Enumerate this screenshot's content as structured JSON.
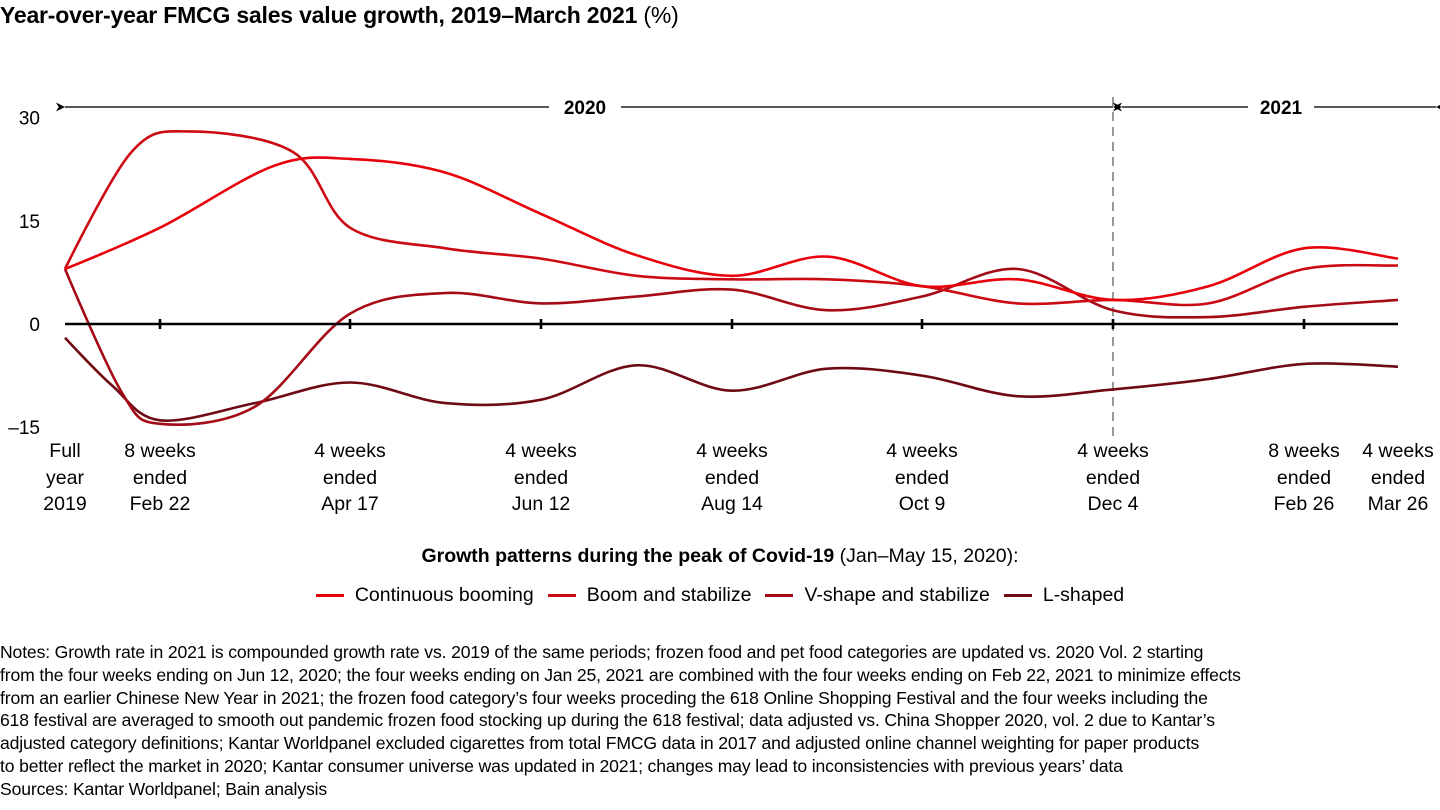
{
  "title": {
    "bold": "Year-over-year FMCG sales value growth, 2019–March 2021",
    "unit": "(%)"
  },
  "chart_data": {
    "type": "line",
    "title": "Year-over-year FMCG sales value growth, 2019–March 2021 (%)",
    "xlabel": "",
    "ylabel": "%",
    "ylim": [
      -15,
      30
    ],
    "yticks": [
      30,
      15,
      0,
      -15
    ],
    "ytick_labels": [
      "30",
      "15",
      "0",
      "–15"
    ],
    "categories": [
      [
        "Full",
        "year",
        "2019"
      ],
      [
        "8 weeks",
        "ended",
        "Feb 22"
      ],
      [
        "4 weeks",
        "ended",
        "Apr 17"
      ],
      [
        "4 weeks",
        "ended",
        "Jun 12"
      ],
      [
        "4 weeks",
        "ended",
        "Aug 14"
      ],
      [
        "4 weeks",
        "ended",
        "Oct 9"
      ],
      [
        "4 weeks",
        "ended",
        "Dec 4"
      ],
      [
        "8 weeks",
        "ended",
        "Feb 26"
      ],
      [
        "4 weeks",
        "ended",
        "Mar 26"
      ]
    ],
    "periods": [
      {
        "label": "2020",
        "from": 0,
        "to": 6
      },
      {
        "label": "2021",
        "from": 6,
        "to": 8
      }
    ],
    "divider_at": 6,
    "grid": false,
    "legend_title_bold": "Growth patterns during the peak of Covid-19",
    "legend_title_rest": " (Jan–May 15, 2020):",
    "legend_position": "bottom-center",
    "series": [
      {
        "name": "Continuous booming",
        "color": "#E8000B",
        "values": [
          8,
          14,
          24,
          16,
          7,
          5.5,
          3.5,
          11,
          9.5
        ],
        "curve_points": [
          [
            0,
            8
          ],
          [
            1,
            14
          ],
          [
            1.6,
            23
          ],
          [
            2,
            24
          ],
          [
            2.5,
            22
          ],
          [
            3,
            16
          ],
          [
            3.5,
            10
          ],
          [
            4,
            7
          ],
          [
            4.5,
            9.8
          ],
          [
            5,
            5.5
          ],
          [
            5.5,
            6.5
          ],
          [
            6,
            3.5
          ],
          [
            6.5,
            5.5
          ],
          [
            7,
            11
          ],
          [
            7.5,
            9.5
          ]
        ]
      },
      {
        "name": "Boom and stabilize",
        "color": "#CC0A14",
        "values": [
          8,
          27,
          14,
          9.5,
          6.5,
          5.5,
          3.5,
          8,
          8.5
        ],
        "curve_points": [
          [
            0,
            8
          ],
          [
            0.7,
            25
          ],
          [
            1.15,
            28
          ],
          [
            1.7,
            25
          ],
          [
            2,
            14
          ],
          [
            2.5,
            11
          ],
          [
            3,
            9.5
          ],
          [
            3.5,
            7
          ],
          [
            4,
            6.5
          ],
          [
            4.5,
            6.5
          ],
          [
            5,
            5.5
          ],
          [
            5.5,
            3
          ],
          [
            6,
            3.5
          ],
          [
            6.5,
            3
          ],
          [
            7,
            8
          ],
          [
            7.5,
            8.5
          ]
        ]
      },
      {
        "name": "V-shape and stabilize",
        "color": "#A50B16",
        "values": [
          8,
          -14.5,
          1.5,
          3,
          5,
          4,
          2,
          2.5,
          3.5
        ],
        "curve_points": [
          [
            0,
            8
          ],
          [
            0.6,
            -10
          ],
          [
            1,
            -14.5
          ],
          [
            1.5,
            -12
          ],
          [
            2,
            1.5
          ],
          [
            2.5,
            4.5
          ],
          [
            3,
            3
          ],
          [
            3.5,
            4
          ],
          [
            4,
            5
          ],
          [
            4.5,
            2
          ],
          [
            5,
            4
          ],
          [
            5.5,
            8
          ],
          [
            6,
            2
          ],
          [
            6.5,
            1
          ],
          [
            7,
            2.5
          ],
          [
            7.5,
            3.5
          ]
        ]
      },
      {
        "name": "L-shaped",
        "color": "#6E0A14",
        "values": [
          -2,
          -14,
          -8.5,
          -11,
          -9.7,
          -7.5,
          -9.5,
          -5.8,
          -6.2
        ],
        "curve_points": [
          [
            0,
            -2
          ],
          [
            0.5,
            -9
          ],
          [
            1,
            -14
          ],
          [
            1.5,
            -11.5
          ],
          [
            2,
            -8.5
          ],
          [
            2.5,
            -11.5
          ],
          [
            3,
            -11
          ],
          [
            3.5,
            -6
          ],
          [
            4,
            -9.7
          ],
          [
            4.5,
            -6.5
          ],
          [
            5,
            -7.5
          ],
          [
            5.5,
            -10.5
          ],
          [
            6,
            -9.5
          ],
          [
            6.5,
            -8
          ],
          [
            7,
            -5.8
          ],
          [
            7.5,
            -6.2
          ]
        ]
      }
    ]
  },
  "notes": "Notes: Growth rate in 2021 is compounded growth rate vs. 2019 of the same periods; frozen food and pet food categories are updated vs. 2020 Vol. 2 starting\nfrom the four weeks ending on Jun 12, 2020; the four weeks ending on Jan 25, 2021 are combined with the four weeks ending on Feb 22, 2021 to minimize effects\nfrom an earlier Chinese New Year in 2021; the frozen food category’s four weeks proceding the 618 Online Shopping Festival and the four weeks including the\n618 festival are averaged to smooth out pandemic frozen food stocking up during the 618 festival; data adjusted vs. China Shopper 2020, vol. 2 due to Kantar’s\nadjusted category definitions; Kantar Worldpanel excluded cigarettes from total FMCG data in 2017 and adjusted online channel weighting for paper products\nto better reflect the market in 2020; Kantar consumer universe was updated in 2021; changes may lead to inconsistencies with previous years’ data",
  "sources": "Sources: Kantar Worldpanel; Bain analysis"
}
